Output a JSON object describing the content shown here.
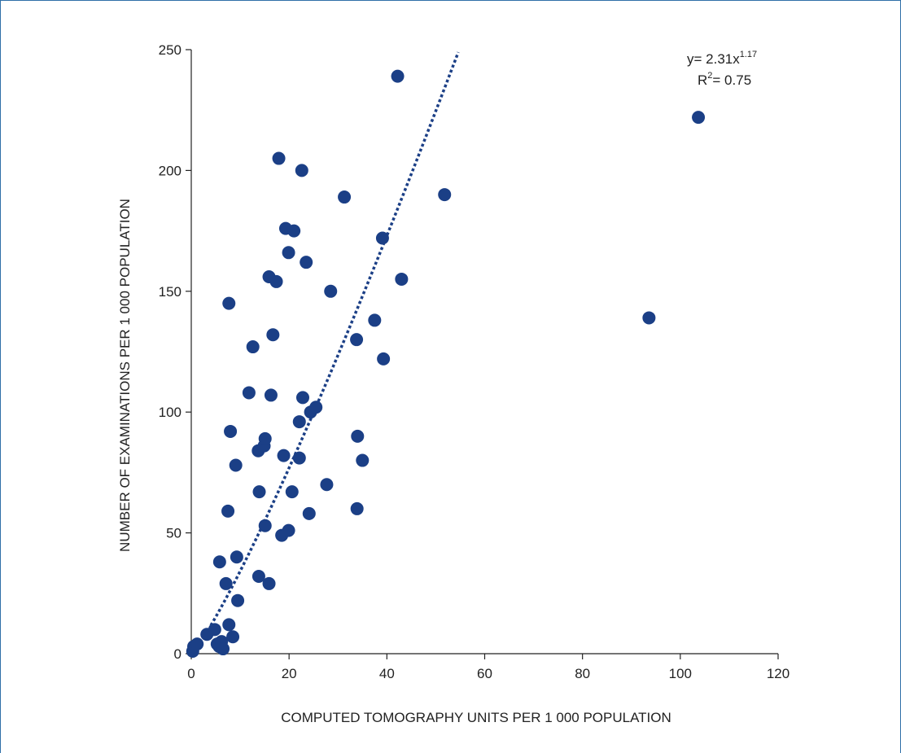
{
  "chart_data": {
    "type": "scatter",
    "xlabel": "COMPUTED TOMOGRAPHY UNITS PER 1 000 POPULATION",
    "ylabel": "NUMBER OF EXAMINATIONS PER 1 000 POPULATION",
    "xlim": [
      0,
      120
    ],
    "ylim": [
      0,
      250
    ],
    "xticks": [
      "0",
      "20",
      "40",
      "60",
      "80",
      "100",
      "120"
    ],
    "yticks": [
      "0",
      "50",
      "100",
      "150",
      "200",
      "250"
    ],
    "grid": false,
    "marker_color": "#1b3f86",
    "trendline": {
      "style": "dotted",
      "color": "#1b3f86",
      "equation_prefix": "y= 2.31x",
      "equation_exponent": "1.17",
      "r2_prefix": "R",
      "r2_exponent": "2",
      "r2_suffix": "= 0.75",
      "x_range": [
        4,
        54.6
      ]
    },
    "points": [
      [
        0.3,
        1
      ],
      [
        0.5,
        3
      ],
      [
        1.2,
        4
      ],
      [
        3.2,
        8
      ],
      [
        4.8,
        10
      ],
      [
        5.3,
        4
      ],
      [
        5.7,
        3
      ],
      [
        6.2,
        5
      ],
      [
        6.5,
        2
      ],
      [
        7.7,
        12
      ],
      [
        8.5,
        7
      ],
      [
        5.8,
        38
      ],
      [
        7.1,
        29
      ],
      [
        9.3,
        40
      ],
      [
        9.5,
        22
      ],
      [
        7.5,
        59
      ],
      [
        9.1,
        78
      ],
      [
        8,
        92
      ],
      [
        7.7,
        145
      ],
      [
        11.8,
        108
      ],
      [
        12.6,
        127
      ],
      [
        13.9,
        67
      ],
      [
        13.8,
        32
      ],
      [
        13.7,
        84
      ],
      [
        14.9,
        86
      ],
      [
        15.1,
        89
      ],
      [
        15.1,
        53
      ],
      [
        15.9,
        29
      ],
      [
        15.9,
        156
      ],
      [
        16.3,
        107
      ],
      [
        16.7,
        132
      ],
      [
        17.4,
        154
      ],
      [
        17.9,
        205
      ],
      [
        18.5,
        49
      ],
      [
        18.9,
        82
      ],
      [
        19.3,
        176
      ],
      [
        19.9,
        51
      ],
      [
        19.9,
        166
      ],
      [
        20.6,
        67
      ],
      [
        21,
        175
      ],
      [
        22.1,
        81
      ],
      [
        22.1,
        96
      ],
      [
        22.6,
        200
      ],
      [
        22.8,
        106
      ],
      [
        23.5,
        162
      ],
      [
        24.1,
        58
      ],
      [
        24.4,
        100
      ],
      [
        25.5,
        102
      ],
      [
        27.7,
        70
      ],
      [
        28.5,
        150
      ],
      [
        31.3,
        189
      ],
      [
        33.8,
        130
      ],
      [
        34,
        90
      ],
      [
        33.9,
        60
      ],
      [
        35,
        80
      ],
      [
        37.5,
        138
      ],
      [
        39.1,
        172
      ],
      [
        39.3,
        122
      ],
      [
        42.2,
        239
      ],
      [
        43,
        155
      ],
      [
        51.8,
        190
      ],
      [
        93.6,
        139
      ],
      [
        103.7,
        222
      ]
    ]
  }
}
